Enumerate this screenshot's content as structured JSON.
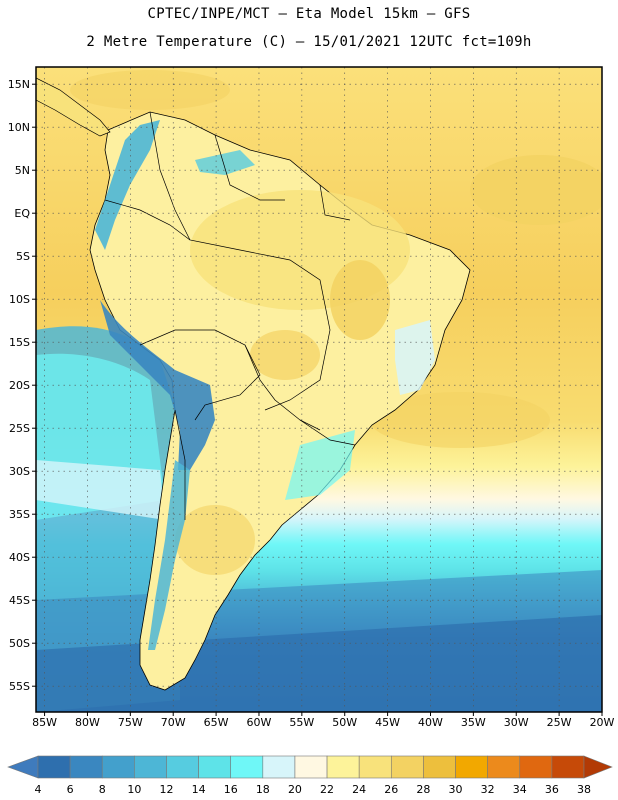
{
  "header": {
    "line1": "CPTEC/INPE/MCT –  Eta Model 15km – GFS",
    "line2": "2 Metre Temperature (C) – 15/01/2021 12UTC fct=109h"
  },
  "map": {
    "lat_labels": [
      "15N",
      "10N",
      "5N",
      "EQ",
      "5S",
      "10S",
      "15S",
      "20S",
      "25S",
      "30S",
      "35S",
      "40S",
      "45S",
      "50S",
      "55S"
    ],
    "lon_labels": [
      "85W",
      "80W",
      "75W",
      "70W",
      "65W",
      "60W",
      "55W",
      "50W",
      "45W",
      "40W",
      "35W",
      "30W",
      "25W",
      "20W"
    ],
    "lat_range": [
      -58,
      17
    ],
    "lon_range": [
      -86,
      -20
    ]
  },
  "colorbar": {
    "labels": [
      "4",
      "6",
      "8",
      "10",
      "12",
      "14",
      "16",
      "18",
      "20",
      "22",
      "24",
      "26",
      "28",
      "30",
      "32",
      "34",
      "36",
      "38"
    ],
    "colors": [
      "#3f7bbd",
      "#2e6fae",
      "#3a87c0",
      "#43a0cc",
      "#4db6d6",
      "#56cce0",
      "#5ee3e8",
      "#6ff7f7",
      "#d7f5fa",
      "#fff8e2",
      "#fdf39a",
      "#f8e27b",
      "#f3d262",
      "#edbf3d",
      "#f2a800",
      "#ec8a1c",
      "#e06810",
      "#c64a08",
      "#b23a05"
    ]
  }
}
